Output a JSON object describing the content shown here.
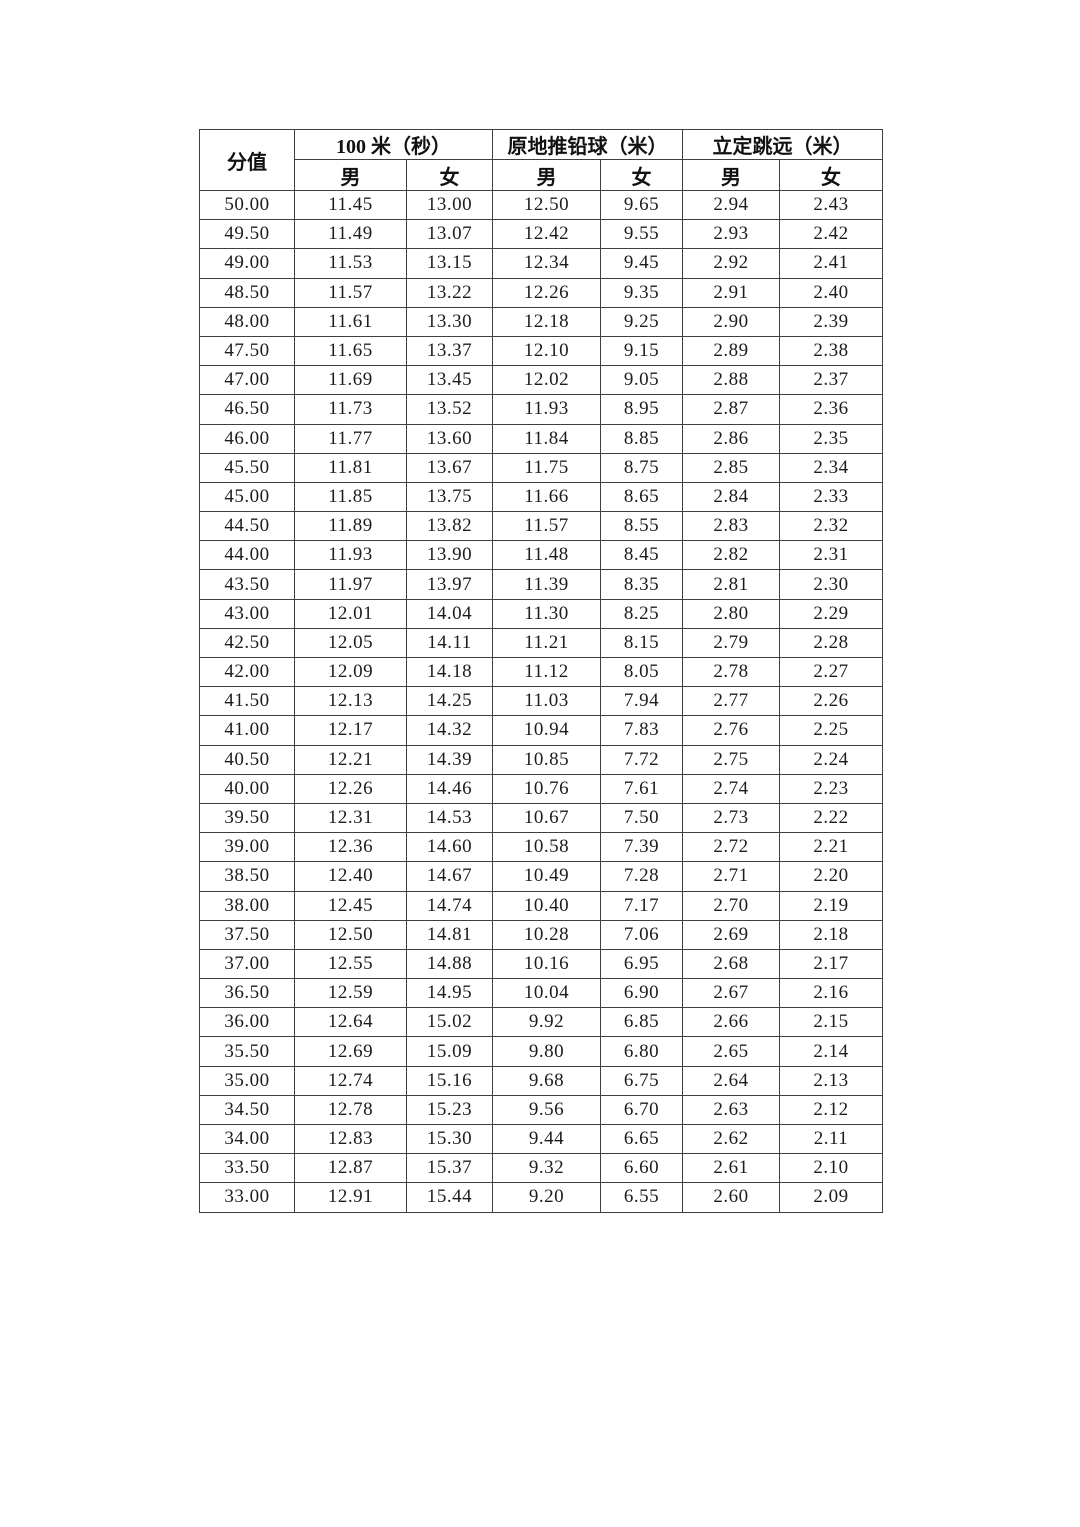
{
  "document": {
    "background_color": "#ffffff",
    "border_color": "#3f3f3f",
    "text_color": "#1c1c1c"
  },
  "table": {
    "corner_header": "分值",
    "groups": [
      {
        "label": "100 米（秒）",
        "sub": [
          "男",
          "女"
        ]
      },
      {
        "label": "原地推铅球（米）",
        "sub": [
          "男",
          "女"
        ]
      },
      {
        "label": "立定跳远（米）",
        "sub": [
          "男",
          "女"
        ]
      }
    ],
    "rows": [
      [
        "50.00",
        "11.45",
        "13.00",
        "12.50",
        "9.65",
        "2.94",
        "2.43"
      ],
      [
        "49.50",
        "11.49",
        "13.07",
        "12.42",
        "9.55",
        "2.93",
        "2.42"
      ],
      [
        "49.00",
        "11.53",
        "13.15",
        "12.34",
        "9.45",
        "2.92",
        "2.41"
      ],
      [
        "48.50",
        "11.57",
        "13.22",
        "12.26",
        "9.35",
        "2.91",
        "2.40"
      ],
      [
        "48.00",
        "11.61",
        "13.30",
        "12.18",
        "9.25",
        "2.90",
        "2.39"
      ],
      [
        "47.50",
        "11.65",
        "13.37",
        "12.10",
        "9.15",
        "2.89",
        "2.38"
      ],
      [
        "47.00",
        "11.69",
        "13.45",
        "12.02",
        "9.05",
        "2.88",
        "2.37"
      ],
      [
        "46.50",
        "11.73",
        "13.52",
        "11.93",
        "8.95",
        "2.87",
        "2.36"
      ],
      [
        "46.00",
        "11.77",
        "13.60",
        "11.84",
        "8.85",
        "2.86",
        "2.35"
      ],
      [
        "45.50",
        "11.81",
        "13.67",
        "11.75",
        "8.75",
        "2.85",
        "2.34"
      ],
      [
        "45.00",
        "11.85",
        "13.75",
        "11.66",
        "8.65",
        "2.84",
        "2.33"
      ],
      [
        "44.50",
        "11.89",
        "13.82",
        "11.57",
        "8.55",
        "2.83",
        "2.32"
      ],
      [
        "44.00",
        "11.93",
        "13.90",
        "11.48",
        "8.45",
        "2.82",
        "2.31"
      ],
      [
        "43.50",
        "11.97",
        "13.97",
        "11.39",
        "8.35",
        "2.81",
        "2.30"
      ],
      [
        "43.00",
        "12.01",
        "14.04",
        "11.30",
        "8.25",
        "2.80",
        "2.29"
      ],
      [
        "42.50",
        "12.05",
        "14.11",
        "11.21",
        "8.15",
        "2.79",
        "2.28"
      ],
      [
        "42.00",
        "12.09",
        "14.18",
        "11.12",
        "8.05",
        "2.78",
        "2.27"
      ],
      [
        "41.50",
        "12.13",
        "14.25",
        "11.03",
        "7.94",
        "2.77",
        "2.26"
      ],
      [
        "41.00",
        "12.17",
        "14.32",
        "10.94",
        "7.83",
        "2.76",
        "2.25"
      ],
      [
        "40.50",
        "12.21",
        "14.39",
        "10.85",
        "7.72",
        "2.75",
        "2.24"
      ],
      [
        "40.00",
        "12.26",
        "14.46",
        "10.76",
        "7.61",
        "2.74",
        "2.23"
      ],
      [
        "39.50",
        "12.31",
        "14.53",
        "10.67",
        "7.50",
        "2.73",
        "2.22"
      ],
      [
        "39.00",
        "12.36",
        "14.60",
        "10.58",
        "7.39",
        "2.72",
        "2.21"
      ],
      [
        "38.50",
        "12.40",
        "14.67",
        "10.49",
        "7.28",
        "2.71",
        "2.20"
      ],
      [
        "38.00",
        "12.45",
        "14.74",
        "10.40",
        "7.17",
        "2.70",
        "2.19"
      ],
      [
        "37.50",
        "12.50",
        "14.81",
        "10.28",
        "7.06",
        "2.69",
        "2.18"
      ],
      [
        "37.00",
        "12.55",
        "14.88",
        "10.16",
        "6.95",
        "2.68",
        "2.17"
      ],
      [
        "36.50",
        "12.59",
        "14.95",
        "10.04",
        "6.90",
        "2.67",
        "2.16"
      ],
      [
        "36.00",
        "12.64",
        "15.02",
        "9.92",
        "6.85",
        "2.66",
        "2.15"
      ],
      [
        "35.50",
        "12.69",
        "15.09",
        "9.80",
        "6.80",
        "2.65",
        "2.14"
      ],
      [
        "35.00",
        "12.74",
        "15.16",
        "9.68",
        "6.75",
        "2.64",
        "2.13"
      ],
      [
        "34.50",
        "12.78",
        "15.23",
        "9.56",
        "6.70",
        "2.63",
        "2.12"
      ],
      [
        "34.00",
        "12.83",
        "15.30",
        "9.44",
        "6.65",
        "2.62",
        "2.11"
      ],
      [
        "33.50",
        "12.87",
        "15.37",
        "9.32",
        "6.60",
        "2.61",
        "2.10"
      ],
      [
        "33.00",
        "12.91",
        "15.44",
        "9.20",
        "6.55",
        "2.60",
        "2.09"
      ]
    ]
  }
}
